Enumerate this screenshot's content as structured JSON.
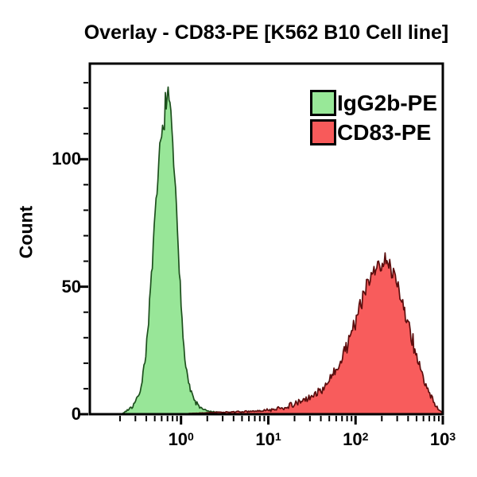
{
  "title": "Overlay - CD83-PE [K562 B10 Cell line]",
  "legend": {
    "items": [
      {
        "label": "IgG2b-PE",
        "color": "#98e898",
        "border": "#000000"
      },
      {
        "label": "CD83-PE",
        "color": "#f85a5a",
        "border": "#000000"
      }
    ]
  },
  "chart_data": {
    "type": "area",
    "subtype": "flow-cytometry-histogram-overlay",
    "title": "Overlay - CD83-PE [K562 B10 Cell line]",
    "xlabel": "",
    "ylabel": "Count",
    "x_scale": "log10",
    "xlim_log10": [
      -1.045,
      3.0
    ],
    "ylim": [
      0,
      137.5
    ],
    "grid": false,
    "legend_position": "top-right-inside",
    "x_ticks": [
      {
        "base": "10",
        "exp": "0",
        "log10": 0
      },
      {
        "base": "10",
        "exp": "1",
        "log10": 1
      },
      {
        "base": "10",
        "exp": "2",
        "log10": 2
      },
      {
        "base": "10",
        "exp": "3",
        "log10": 3
      }
    ],
    "y_ticks": [
      {
        "label": "0",
        "value": 0
      },
      {
        "label": "50",
        "value": 50
      },
      {
        "label": "100",
        "value": 100
      }
    ],
    "y_minor_step": 10,
    "axis_color": "#000000",
    "series": [
      {
        "name": "IgG2b-PE",
        "fill": "#98e698",
        "stroke": "#1d4f1d",
        "peak_x": 0.68,
        "peak_count": 130,
        "points_log10x_count": [
          [
            -0.68,
            0
          ],
          [
            -0.62,
            1.5
          ],
          [
            -0.56,
            3
          ],
          [
            -0.5,
            6
          ],
          [
            -0.45,
            12
          ],
          [
            -0.41,
            22
          ],
          [
            -0.37,
            38
          ],
          [
            -0.33,
            58
          ],
          [
            -0.29,
            80
          ],
          [
            -0.25,
            100
          ],
          [
            -0.21,
            112
          ],
          [
            -0.18,
            121
          ],
          [
            -0.15,
            124
          ],
          [
            -0.12,
            118
          ],
          [
            -0.09,
            104
          ],
          [
            -0.06,
            84
          ],
          [
            -0.03,
            62
          ],
          [
            0.0,
            44
          ],
          [
            0.03,
            28
          ],
          [
            0.07,
            16
          ],
          [
            0.11,
            9
          ],
          [
            0.16,
            5
          ],
          [
            0.22,
            2.5
          ],
          [
            0.3,
            1.2
          ],
          [
            0.45,
            0.6
          ],
          [
            0.65,
            0.2
          ],
          [
            0.85,
            0
          ]
        ]
      },
      {
        "name": "CD83-PE",
        "fill": "#f85c5c",
        "stroke": "#5c0d0d",
        "peak_x": 200,
        "peak_count": 62,
        "points_log10x_count": [
          [
            0.05,
            0.2
          ],
          [
            0.3,
            0.6
          ],
          [
            0.6,
            0.9
          ],
          [
            0.9,
            1.2
          ],
          [
            1.05,
            1.8
          ],
          [
            1.2,
            2.8
          ],
          [
            1.35,
            4.5
          ],
          [
            1.5,
            7
          ],
          [
            1.62,
            10
          ],
          [
            1.72,
            14
          ],
          [
            1.82,
            20
          ],
          [
            1.92,
            29
          ],
          [
            2.02,
            39
          ],
          [
            2.1,
            47
          ],
          [
            2.18,
            54
          ],
          [
            2.26,
            59
          ],
          [
            2.34,
            60
          ],
          [
            2.42,
            56
          ],
          [
            2.5,
            49
          ],
          [
            2.58,
            39
          ],
          [
            2.66,
            28
          ],
          [
            2.74,
            18
          ],
          [
            2.82,
            10
          ],
          [
            2.89,
            5
          ],
          [
            2.95,
            2
          ],
          [
            3.0,
            0.5
          ]
        ]
      }
    ],
    "noise": {
      "seeds": [
        7,
        13
      ],
      "amplitude": [
        0.6,
        0.7
      ]
    }
  }
}
